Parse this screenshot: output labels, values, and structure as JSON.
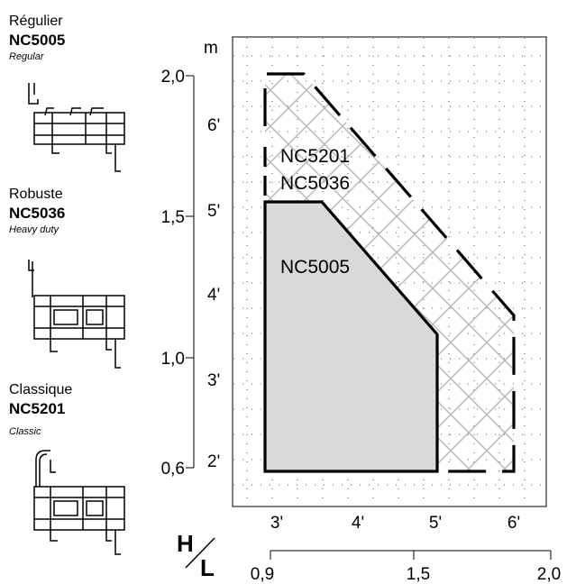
{
  "legend": [
    {
      "fr": "Régulier",
      "code": "NC5005",
      "en": "Regular"
    },
    {
      "fr": "Robuste",
      "code": "NC5036",
      "en": "Heavy duty"
    },
    {
      "fr": "Classique",
      "code": "NC5201",
      "en": "Classic"
    }
  ],
  "axes": {
    "y_unit": "m",
    "y_metric_ticks": [
      "2,0",
      "1,5",
      "1,0",
      "0,6"
    ],
    "y_imperial_ticks": [
      "6'",
      "5'",
      "4'",
      "3'",
      "2'"
    ],
    "x_imperial_ticks": [
      "3'",
      "4'",
      "5'",
      "6'"
    ],
    "x_metric_ticks": [
      "0,9",
      "1,5",
      "2,0"
    ],
    "h_label": "H",
    "l_label": "L"
  },
  "regions": [
    {
      "name": "NC5201",
      "label": "NC5201",
      "style": "dashed"
    },
    {
      "name": "NC5036",
      "label": "NC5036",
      "style": "crosshatch"
    },
    {
      "name": "NC5005",
      "label": "NC5005",
      "style": "gray-fill"
    }
  ],
  "colors": {
    "fill": "#d9d9d9",
    "hatch": "#bdbdbd",
    "grid": "#555555",
    "line": "#000000"
  }
}
